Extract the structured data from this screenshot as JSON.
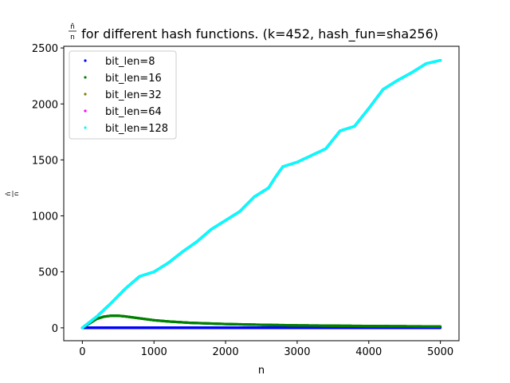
{
  "chart_data": {
    "type": "scatter",
    "title_main": " for different hash functions. (k=452, hash_fun=sha256)",
    "title_frac_num": "n̂",
    "title_frac_den": "n",
    "xlabel": "n",
    "ylabel_num": "n̂",
    "ylabel_den": "n",
    "xlim": [
      -260,
      5260
    ],
    "ylim": [
      -115,
      2515
    ],
    "x_ticks": [
      0,
      1000,
      2000,
      3000,
      4000,
      5000
    ],
    "x_tick_labels": [
      "0",
      "1000",
      "2000",
      "3000",
      "4000",
      "5000"
    ],
    "y_ticks": [
      0,
      500,
      1000,
      1500,
      2000,
      2500
    ],
    "y_tick_labels": [
      "0",
      "500",
      "1000",
      "1500",
      "2000",
      "2500"
    ],
    "grid": false,
    "legend_position": "top-left",
    "series": [
      {
        "name": "bit_len=8",
        "color": "#0000ff",
        "x": [
          0,
          50,
          100,
          200,
          500,
          1000,
          2000,
          3000,
          4000,
          5000
        ],
        "y": [
          0,
          1,
          1,
          1,
          1,
          1,
          1,
          1,
          1,
          1
        ]
      },
      {
        "name": "bit_len=16",
        "color": "#008000",
        "x": [
          0,
          100,
          200,
          300,
          400,
          500,
          600,
          800,
          1000,
          1200,
          1500,
          2000,
          2500,
          3000,
          3500,
          4000,
          4500,
          5000
        ],
        "y": [
          0,
          40,
          80,
          100,
          108,
          108,
          102,
          85,
          68,
          57,
          45,
          34,
          27,
          22,
          19,
          16,
          14,
          12
        ]
      },
      {
        "name": "bit_len=32",
        "color": "#808000",
        "x": [
          0,
          200,
          400,
          600,
          800,
          1000,
          1200,
          1400,
          1600,
          1800,
          2000,
          2200,
          2400,
          2600,
          2700,
          2800,
          3000,
          3200,
          3400,
          3600,
          3800,
          4000,
          4200,
          4400,
          4600,
          4800,
          5000
        ],
        "y": [
          0,
          100,
          220,
          350,
          460,
          500,
          580,
          680,
          770,
          880,
          960,
          1040,
          1170,
          1250,
          1350,
          1440,
          1480,
          1540,
          1600,
          1760,
          1800,
          1960,
          2130,
          2210,
          2280,
          2360,
          2390
        ]
      },
      {
        "name": "bit_len=64",
        "color": "#ff00ff",
        "x": [
          0,
          200,
          400,
          600,
          800,
          1000,
          1200,
          1400,
          1600,
          1800,
          2000,
          2200,
          2400,
          2600,
          2700,
          2800,
          3000,
          3200,
          3400,
          3600,
          3800,
          4000,
          4200,
          4400,
          4600,
          4800,
          5000
        ],
        "y": [
          0,
          100,
          220,
          350,
          460,
          500,
          580,
          680,
          770,
          880,
          960,
          1040,
          1170,
          1250,
          1350,
          1440,
          1480,
          1540,
          1600,
          1760,
          1800,
          1960,
          2130,
          2210,
          2280,
          2360,
          2390
        ]
      },
      {
        "name": "bit_len=128",
        "color": "#00ffff",
        "x": [
          0,
          200,
          400,
          600,
          800,
          1000,
          1200,
          1400,
          1600,
          1800,
          2000,
          2200,
          2400,
          2600,
          2700,
          2800,
          3000,
          3200,
          3400,
          3600,
          3800,
          4000,
          4200,
          4400,
          4600,
          4800,
          5000
        ],
        "y": [
          0,
          100,
          220,
          350,
          460,
          500,
          580,
          680,
          770,
          880,
          960,
          1040,
          1170,
          1250,
          1350,
          1440,
          1480,
          1540,
          1600,
          1760,
          1800,
          1960,
          2130,
          2210,
          2280,
          2360,
          2390
        ]
      }
    ]
  }
}
